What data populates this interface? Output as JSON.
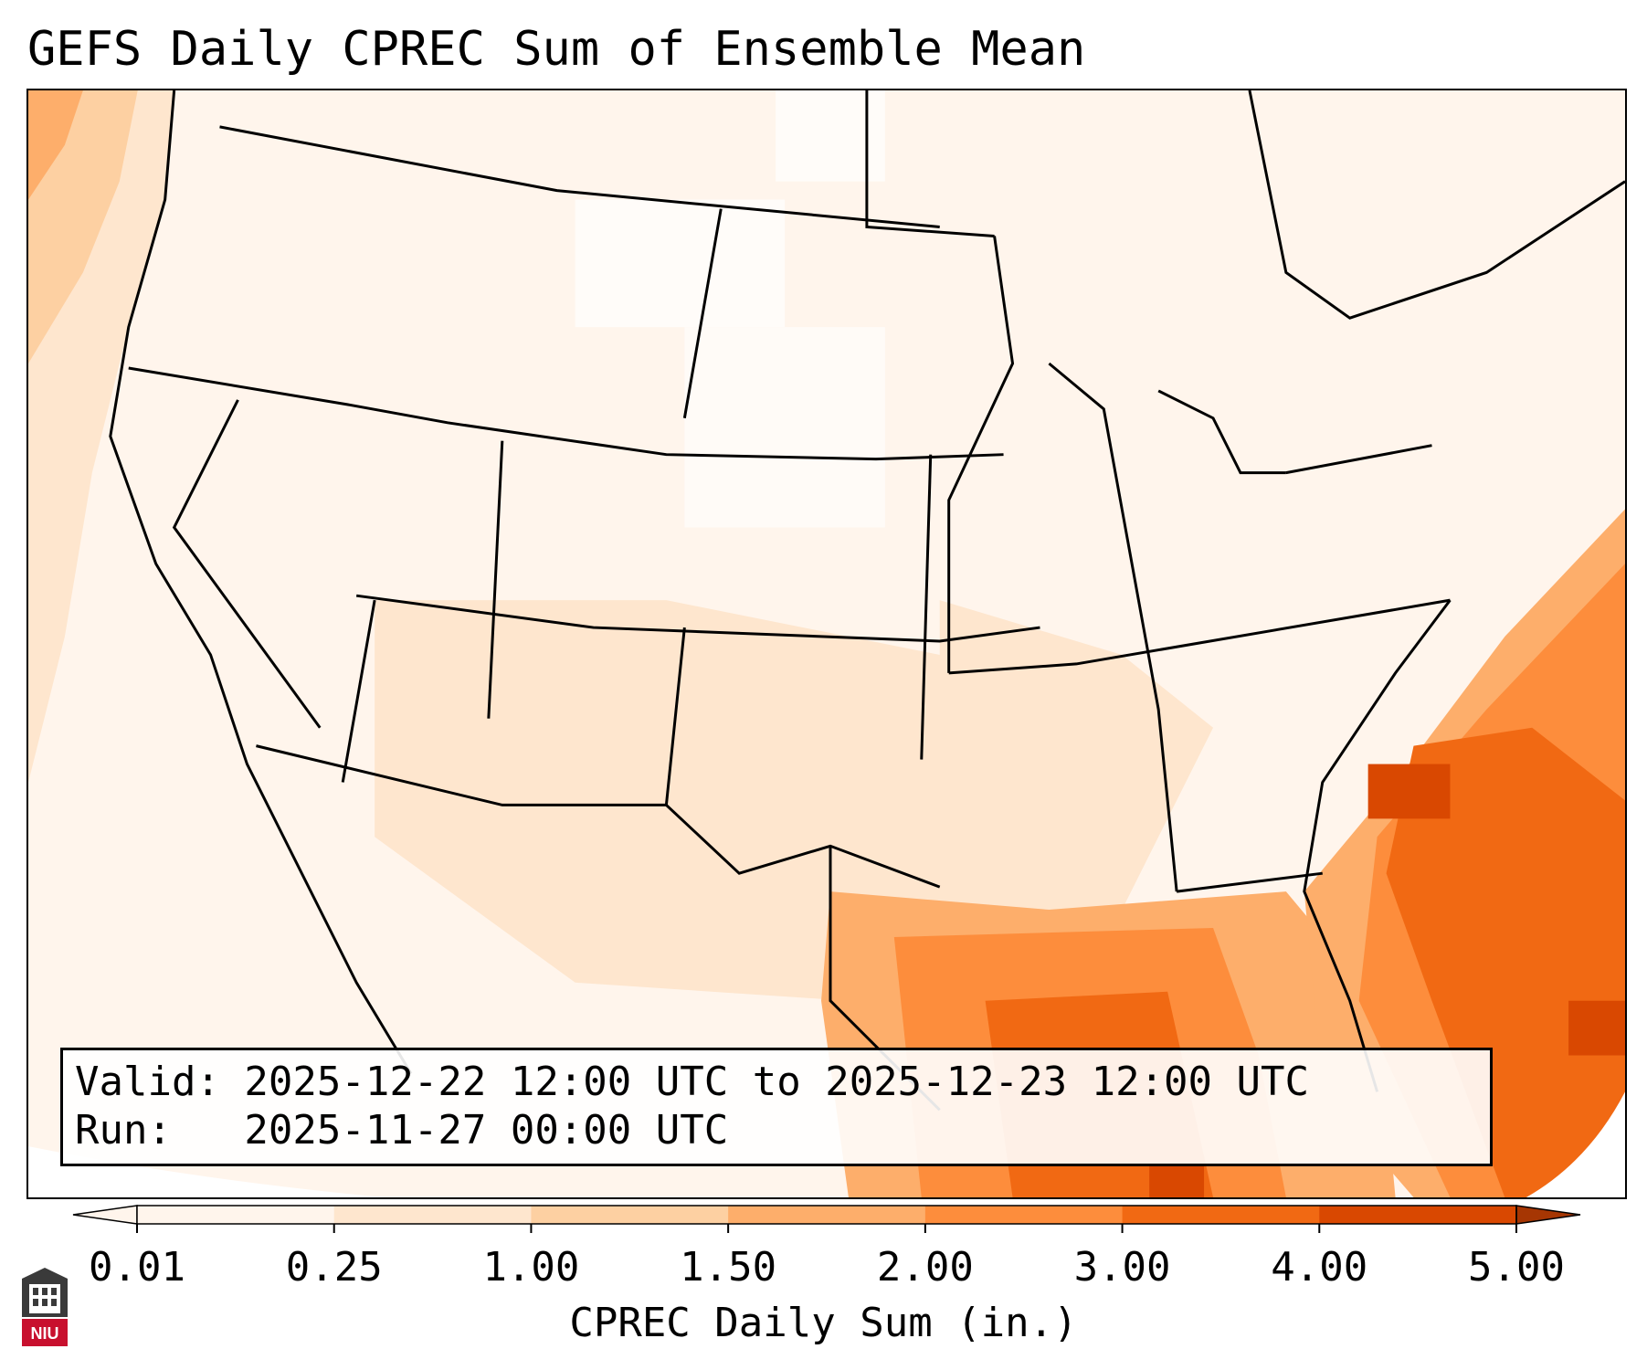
{
  "title": "GEFS Daily CPREC Sum of Ensemble Mean",
  "info": {
    "valid": "Valid: 2025-12-22 12:00 UTC to 2025-12-23 12:00 UTC",
    "run": "Run:   2025-11-27 00:00 UTC"
  },
  "colorbar": {
    "label": "CPREC Daily Sum (in.)",
    "ticks": [
      "0.01",
      "0.25",
      "1.00",
      "1.50",
      "2.00",
      "3.00",
      "4.00",
      "5.00"
    ],
    "colors": [
      "#fff5ec",
      "#fee6ce",
      "#fdd0a2",
      "#fdae6b",
      "#fd8d3c",
      "#f16913",
      "#d94801",
      "#a63603"
    ]
  },
  "logo": {
    "text": "NIU",
    "icon": "niu-logo-icon",
    "color": "#c8102e"
  },
  "map": {
    "region": "Contiguous United States",
    "palette": {
      "faint": "#fff5ec",
      "light": "#fee6ce",
      "medium": "#fdd0a2",
      "orange": "#fdae6b",
      "dark": "#fd8d3c",
      "deeper": "#f16913",
      "deepest": "#d94801"
    }
  }
}
